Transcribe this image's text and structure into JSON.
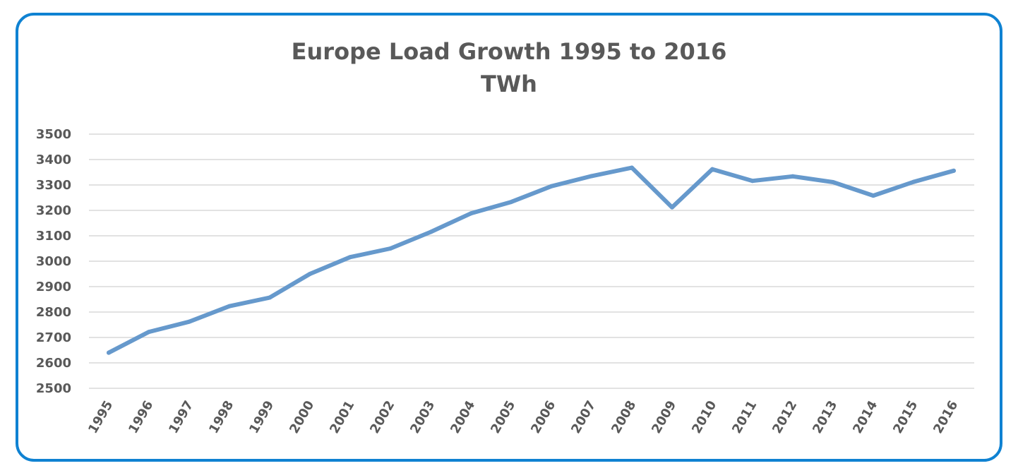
{
  "chart_data": {
    "type": "line",
    "title": "Europe Load Growth 1995 to 2016",
    "subtitle": "TWh",
    "xlabel": "",
    "ylabel": "",
    "categories": [
      "1995",
      "1996",
      "1997",
      "1998",
      "1999",
      "2000",
      "2001",
      "2002",
      "2003",
      "2004",
      "2005",
      "2006",
      "2007",
      "2008",
      "2009",
      "2010",
      "2011",
      "2012",
      "2013",
      "2014",
      "2015",
      "2016"
    ],
    "series": [
      {
        "values": [
          2640,
          2722,
          2762,
          2823,
          2857,
          2950,
          3016,
          3050,
          3115,
          3188,
          3233,
          3295,
          3335,
          3368,
          3212,
          3362,
          3316,
          3334,
          3311,
          3258,
          3312,
          3356
        ]
      }
    ],
    "ylim": [
      2500,
      3500
    ],
    "yticks": [
      "2500",
      "2600",
      "2700",
      "2800",
      "2900",
      "3000",
      "3100",
      "3200",
      "3300",
      "3400",
      "3500"
    ],
    "grid": "horizontal",
    "legend": "none",
    "colors": {
      "line": "#6699cc",
      "grid": "#d9d9d9",
      "frame": "#0f82d2",
      "text": "#595959"
    }
  }
}
